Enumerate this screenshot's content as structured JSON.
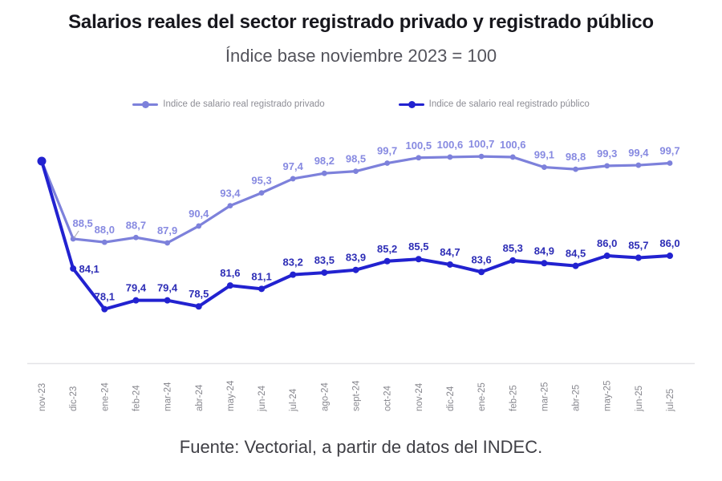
{
  "chart_data": {
    "type": "line",
    "title": "Salarios reales del sector registrado privado y registrado público",
    "subtitle": "Índice base noviembre 2023 = 100",
    "source": "Fuente: Vectorial, a partir de datos del INDEC.",
    "legend_position": "top",
    "grid": false,
    "ylim": [
      70,
      104
    ],
    "categories": [
      "nov-23",
      "dic-23",
      "ene-24",
      "feb-24",
      "mar-24",
      "abr-24",
      "may-24",
      "jun-24",
      "jul-24",
      "ago-24",
      "sept-24",
      "oct-24",
      "nov-24",
      "dic-24",
      "ene-25",
      "feb-25",
      "mar-25",
      "abr-25",
      "may-25",
      "jun-25",
      "jul-25"
    ],
    "series": [
      {
        "name": "Indice de salario real registrado privado",
        "color": "#7d81db",
        "label_color": "#878ae1",
        "values": [
          100,
          88.5,
          88.0,
          88.7,
          87.9,
          90.4,
          93.4,
          95.3,
          97.4,
          98.2,
          98.5,
          99.7,
          100.5,
          100.6,
          100.7,
          100.6,
          99.1,
          98.8,
          99.3,
          99.4,
          99.7
        ],
        "labels": [
          "",
          "88,5",
          "88,0",
          "88,7",
          "87,9",
          "90,4",
          "93,4",
          "95,3",
          "97,4",
          "98,2",
          "98,5",
          "99,7",
          "100,5",
          "100,6",
          "100,7",
          "100,6",
          "99,1",
          "98,8",
          "99,3",
          "99,4",
          "99,7"
        ]
      },
      {
        "name": "Indice de salario real registrado público",
        "color": "#2222d0",
        "label_color": "#2d2db6",
        "values": [
          100,
          84.1,
          78.1,
          79.4,
          79.4,
          78.5,
          81.6,
          81.1,
          83.2,
          83.5,
          83.9,
          85.2,
          85.5,
          84.7,
          83.6,
          85.3,
          84.9,
          84.5,
          86.0,
          85.7,
          86.0
        ],
        "labels": [
          "",
          "84,1",
          "78,1",
          "79,4",
          "79,4",
          "78,5",
          "81,6",
          "81,1",
          "83,2",
          "83,5",
          "83,9",
          "85,2",
          "85,5",
          "84,7",
          "83,6",
          "85,3",
          "84,9",
          "84,5",
          "86,0",
          "85,7",
          "86,0"
        ]
      }
    ]
  }
}
